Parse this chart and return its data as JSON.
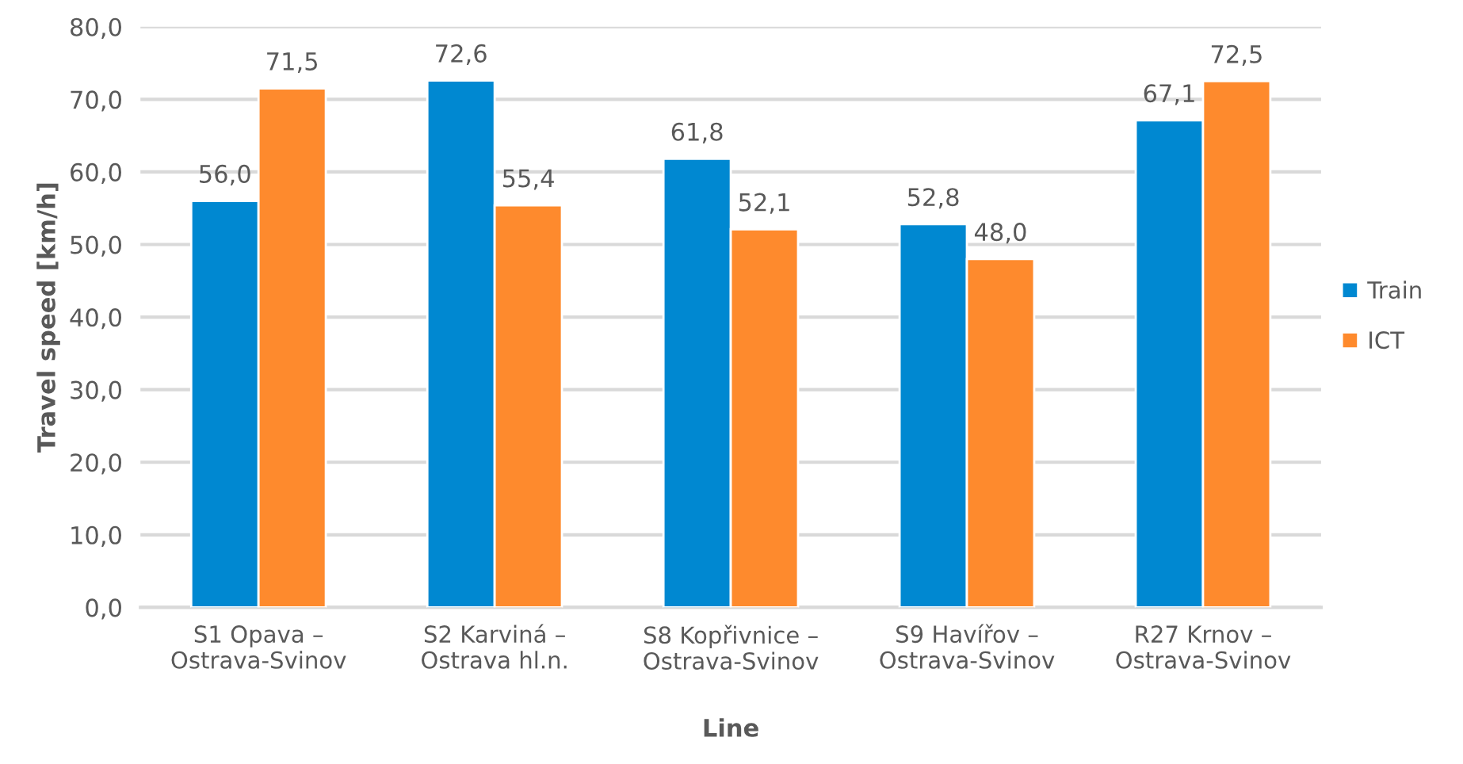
{
  "chart_data": {
    "type": "bar",
    "xlabel": "Line",
    "ylabel": "Travel speed [km/h]",
    "categories": [
      "S1 Opava –\nOstrava-Svinov",
      "S2 Karviná –\nOstrava hl.n.",
      "S8 Kopřivnice –\nOstrava-Svinov",
      "S9 Havířov –\nOstrava-Svinov",
      "R27 Krnov –\nOstrava-Svinov"
    ],
    "series": [
      {
        "name": "Train",
        "color": "#0088d1",
        "values": [
          56.0,
          72.6,
          61.8,
          52.8,
          67.1
        ],
        "value_labels": [
          "56,0",
          "72,6",
          "61,8",
          "52,8",
          "67,1"
        ]
      },
      {
        "name": "ICT",
        "color": "#fe8a2d",
        "values": [
          71.5,
          55.4,
          52.1,
          48.0,
          72.5
        ],
        "value_labels": [
          "71,5",
          "55,4",
          "52,1",
          "48,0",
          "72,5"
        ]
      }
    ],
    "ylim": [
      0,
      80
    ],
    "yticks": [
      {
        "value": 0,
        "label": "0,0"
      },
      {
        "value": 10,
        "label": "10,0"
      },
      {
        "value": 20,
        "label": "20,0"
      },
      {
        "value": 30,
        "label": "30,0"
      },
      {
        "value": 40,
        "label": "40,0"
      },
      {
        "value": 50,
        "label": "50,0"
      },
      {
        "value": 60,
        "label": "60,0"
      },
      {
        "value": 70,
        "label": "70,0"
      },
      {
        "value": 80,
        "label": "80,0"
      }
    ],
    "grid": "y",
    "legend": "right"
  }
}
